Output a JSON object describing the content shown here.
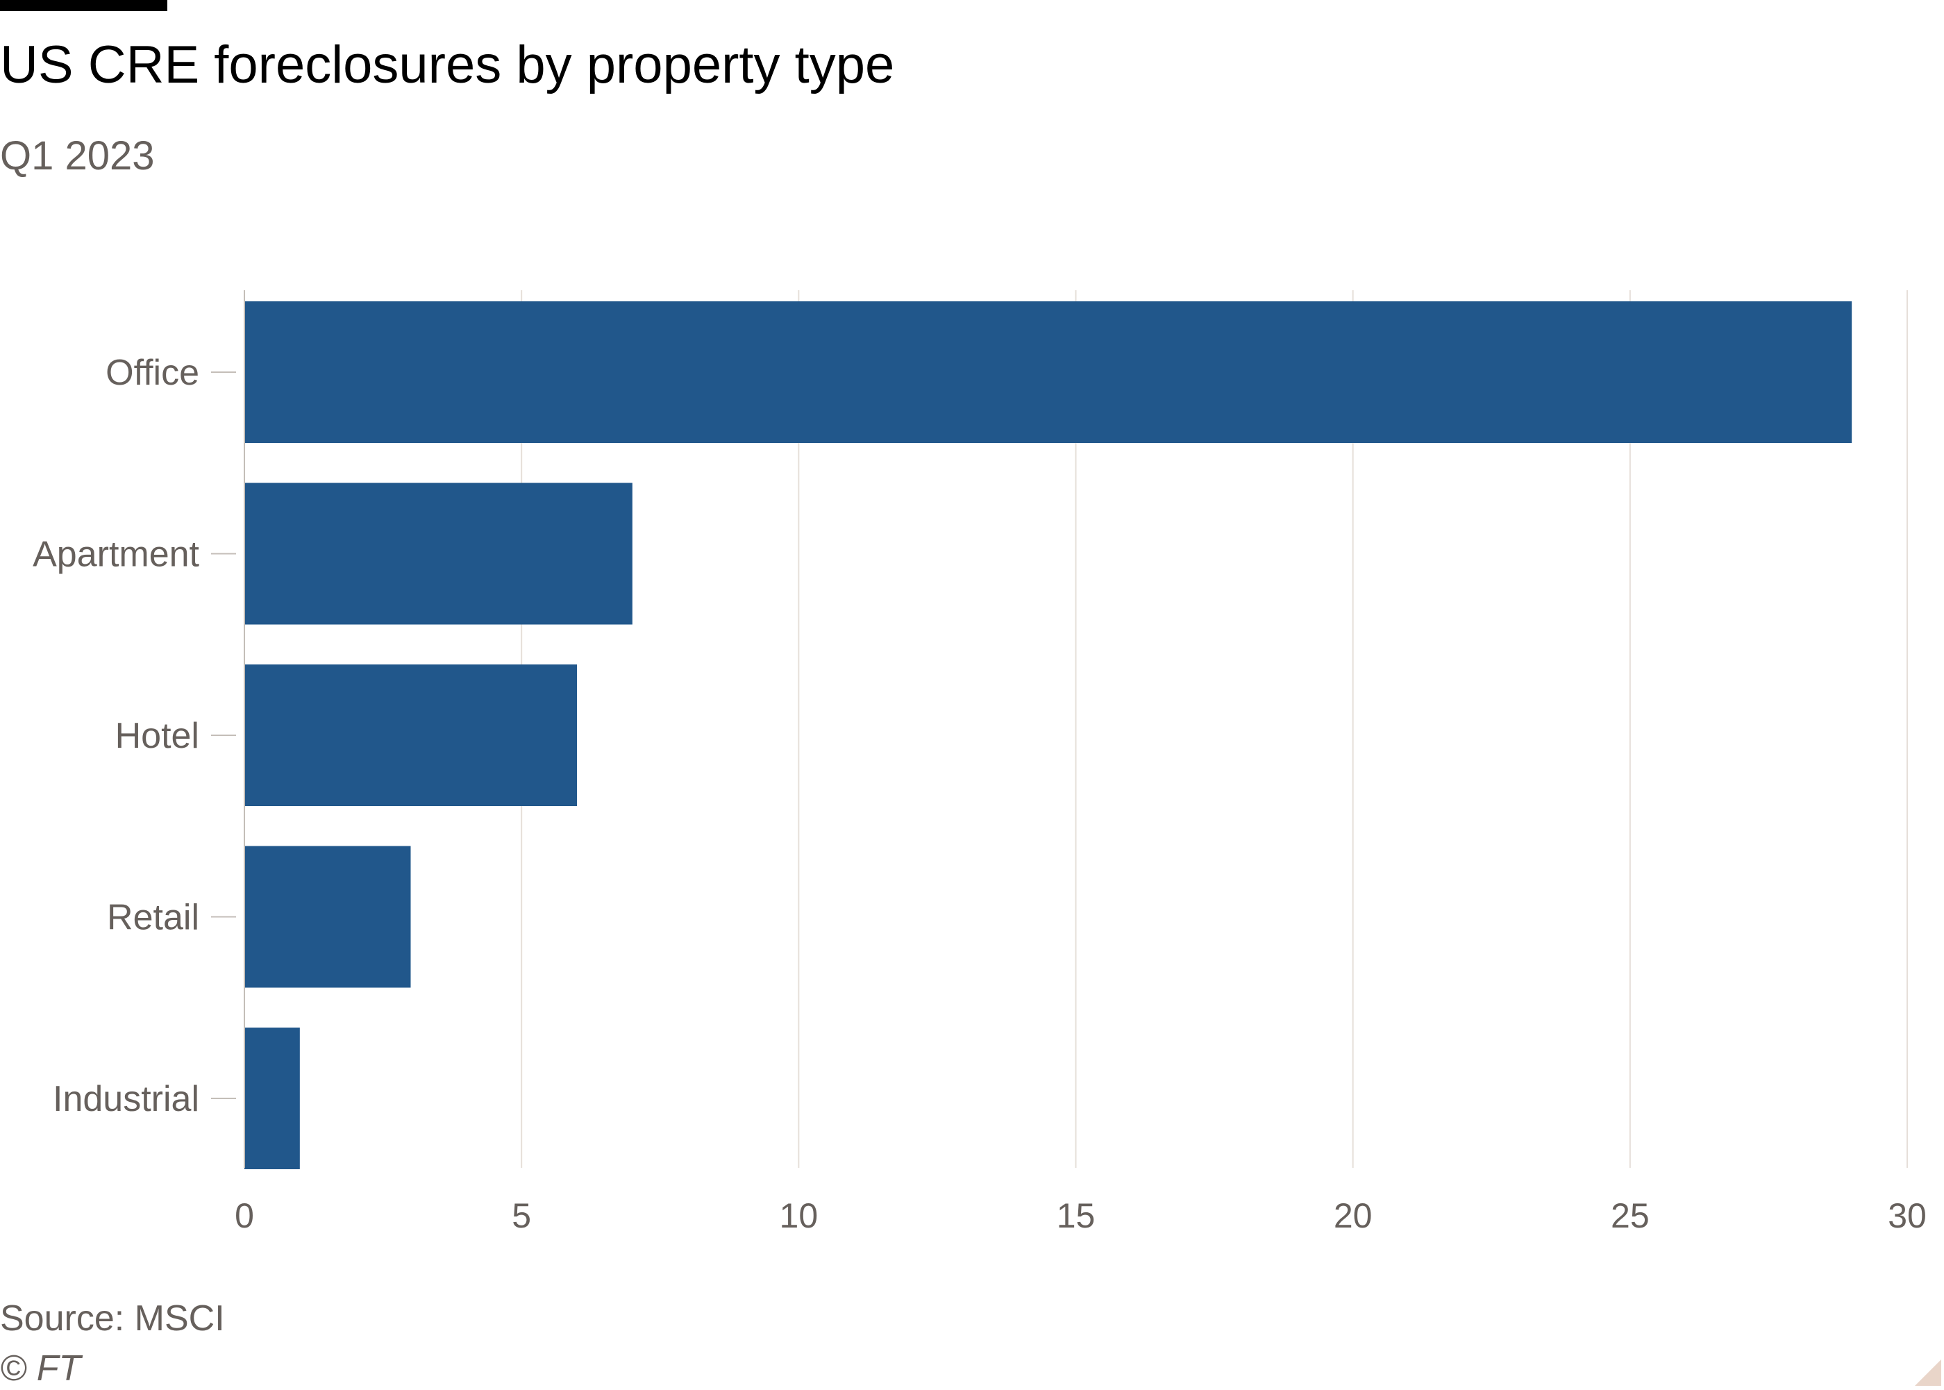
{
  "title": "US CRE foreclosures by property type",
  "subtitle": "Q1 2023",
  "source": "Source: MSCI",
  "copyright": "© FT",
  "colors": {
    "bar": "#21578b",
    "gridline": "#e6dfd9",
    "axis": "#c4beb8",
    "text_muted": "#66605c",
    "corner": "#e9d5c9"
  },
  "chart_data": {
    "type": "bar",
    "orientation": "horizontal",
    "categories": [
      "Office",
      "Apartment",
      "Hotel",
      "Retail",
      "Industrial"
    ],
    "values": [
      29,
      7,
      6,
      3,
      1
    ],
    "xlim": [
      0,
      30
    ],
    "xticks": [
      0,
      5,
      10,
      15,
      20,
      25,
      30
    ],
    "grid": "vertical",
    "legend": "none"
  }
}
